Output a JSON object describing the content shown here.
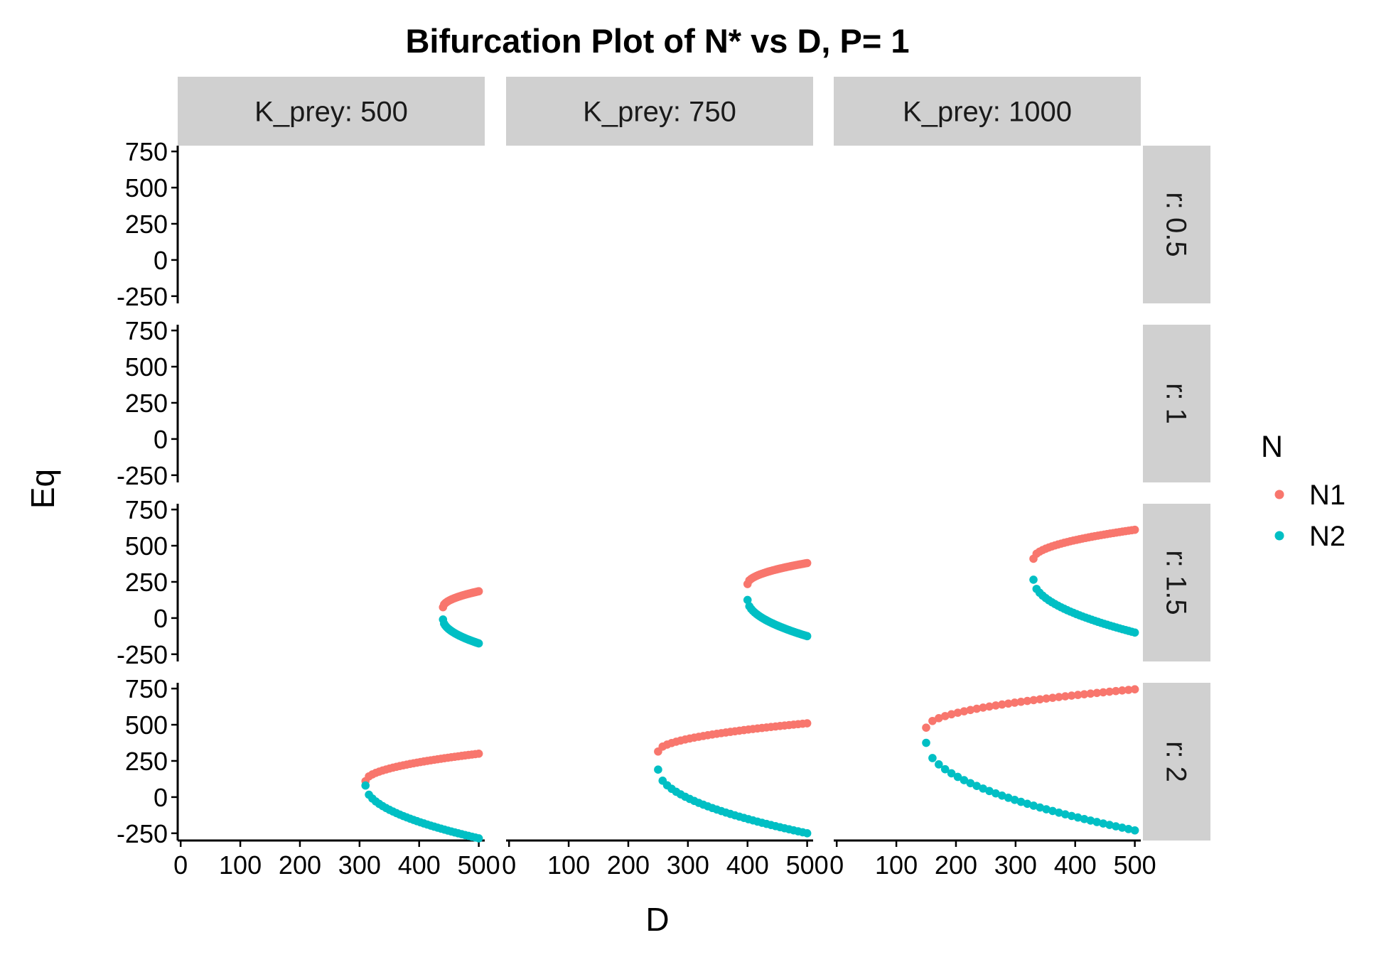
{
  "chart_data": {
    "type": "scatter",
    "title": "Bifurcation Plot of N* vs D, P= 1",
    "xlabel": "D",
    "ylabel": "Eq",
    "xlim": [
      -5,
      510
    ],
    "ylim": [
      -300,
      790
    ],
    "x_ticks": [
      0,
      100,
      200,
      300,
      400,
      500
    ],
    "x_tick_labels": [
      "0",
      "100",
      "200",
      "300",
      "400",
      "500"
    ],
    "y_ticks": [
      -250,
      0,
      250,
      500,
      750
    ],
    "y_tick_labels": [
      "-250",
      "0",
      "250",
      "500",
      "750"
    ],
    "grid": false,
    "legend_position": "right",
    "legend": {
      "title": "N",
      "entries": [
        {
          "name": "N1",
          "color": "#F8766D"
        },
        {
          "name": "N2",
          "color": "#00BFC4"
        }
      ]
    },
    "column_facets": [
      "K_prey: 500",
      "K_prey: 750",
      "K_prey: 1000"
    ],
    "row_facets": [
      "r: 0.5",
      "r: 1",
      "r: 1.5",
      "r: 2"
    ],
    "series_colors": {
      "N1": "#F8766D",
      "N2": "#00BFC4"
    },
    "panels": [
      {
        "row": 2,
        "col": 0,
        "d_start": 440,
        "d_end": 500,
        "N1": {
          "start": 75,
          "end": 185
        },
        "N2": {
          "start": -10,
          "end": -175
        }
      },
      {
        "row": 2,
        "col": 1,
        "d_start": 400,
        "d_end": 500,
        "N1": {
          "start": 235,
          "end": 380
        },
        "N2": {
          "start": 125,
          "end": -125
        }
      },
      {
        "row": 2,
        "col": 2,
        "d_start": 330,
        "d_end": 500,
        "N1": {
          "start": 410,
          "end": 610
        },
        "N2": {
          "start": 265,
          "end": -100
        }
      },
      {
        "row": 3,
        "col": 0,
        "d_start": 310,
        "d_end": 500,
        "N1": {
          "start": 110,
          "end": 300
        },
        "N2": {
          "start": 80,
          "end": -285
        }
      },
      {
        "row": 3,
        "col": 1,
        "d_start": 250,
        "d_end": 500,
        "N1": {
          "start": 315,
          "end": 510
        },
        "N2": {
          "start": 190,
          "end": -250
        }
      },
      {
        "row": 3,
        "col": 2,
        "d_start": 150,
        "d_end": 500,
        "N1": {
          "start": 480,
          "end": 745
        },
        "N2": {
          "start": 375,
          "end": -230
        }
      }
    ]
  }
}
